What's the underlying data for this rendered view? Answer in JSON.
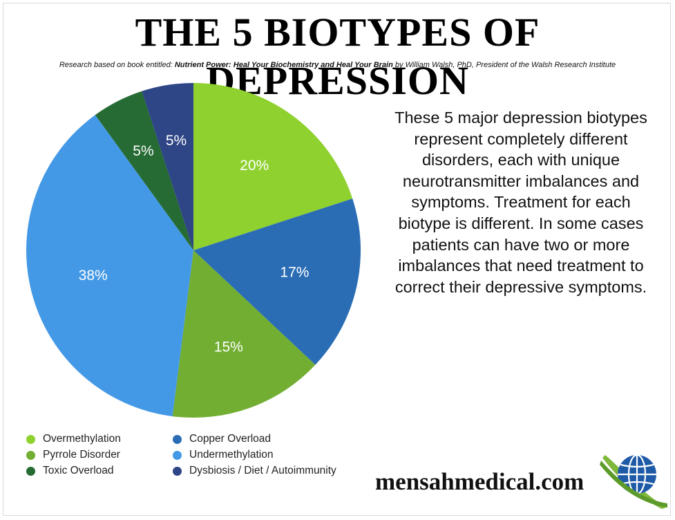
{
  "title": "THE 5 BIOTYPES OF DEPRESSION",
  "subtitle": {
    "prefix": "Research based on book entitled: ",
    "book": "Nutrient Power: Heal Your Biochemistry and Heal Your Brain",
    "suffix": " by William Walsh, PhD, President of the Walsh Research Institute"
  },
  "description": "These 5 major depression biotypes represent completely different disorders, each with unique neurotransmitter imbalances and symptoms. Treatment for each biotype is different. In some cases patients can have two or more imbalances that need treatment to correct their depressive symptoms.",
  "brand": "mensahmedical.com",
  "logo_icon": "globe-swoosh-icon",
  "chart_data": {
    "type": "pie",
    "title": "THE 5 BIOTYPES OF DEPRESSION",
    "slices": [
      {
        "label": "Overmethylation",
        "value": 20,
        "display": "20%",
        "color": "#8fd12f"
      },
      {
        "label": "Copper Overload",
        "value": 17,
        "display": "17%",
        "color": "#2a6db5"
      },
      {
        "label": "Pyrrole Disorder",
        "value": 15,
        "display": "15%",
        "color": "#72ae32"
      },
      {
        "label": "Undermethylation",
        "value": 38,
        "display": "38%",
        "color": "#4499e6"
      },
      {
        "label": "Toxic Overload",
        "value": 5,
        "display": "5%",
        "color": "#266b34"
      },
      {
        "label": "Dysbiosis / Diet / Autoimmunity",
        "value": 5,
        "display": "5%",
        "color": "#2e4586"
      }
    ],
    "legend_position": "bottom-left"
  }
}
